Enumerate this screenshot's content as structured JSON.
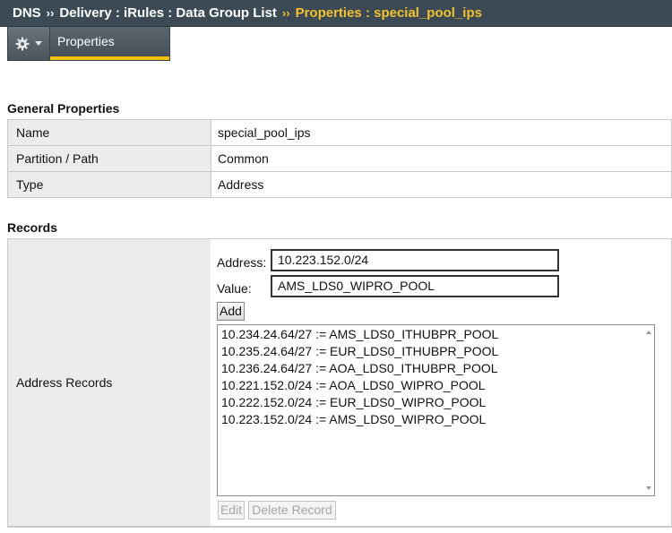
{
  "breadcrumb": {
    "root": "DNS",
    "separator": "››",
    "path": "Delivery : iRules : Data Group List",
    "current": "Properties : special_pool_ips"
  },
  "tabs": [
    {
      "icon": "gear-icon",
      "has_dropdown": true
    },
    {
      "label": "Properties",
      "active": true
    }
  ],
  "general": {
    "title": "General Properties",
    "rows": [
      {
        "key": "Name",
        "value": "special_pool_ips"
      },
      {
        "key": "Partition / Path",
        "value": "Common"
      },
      {
        "key": "Type",
        "value": "Address"
      }
    ]
  },
  "records": {
    "title": "Records",
    "row_label": "Address Records",
    "address_label": "Address:",
    "address_value": "10.223.152.0/24",
    "value_label": "Value:",
    "value_value": "AMS_LDS0_WIPRO_POOL",
    "add_label": "Add",
    "items": [
      "10.234.24.64/27 := AMS_LDS0_ITHUBPR_POOL",
      "10.235.24.64/27 := EUR_LDS0_ITHUBPR_POOL",
      "10.236.24.64/27 := AOA_LDS0_ITHUBPR_POOL",
      "10.221.152.0/24 := AOA_LDS0_WIPRO_POOL",
      "10.222.152.0/24 := EUR_LDS0_WIPRO_POOL",
      "10.223.152.0/24 := AMS_LDS0_WIPRO_POOL"
    ],
    "edit_label": "Edit",
    "delete_label": "Delete Record"
  },
  "colors": {
    "header_bg": "#3c4a55",
    "current_crumb": "#f2c12e",
    "tab_accent": "#f2c200",
    "label_cell_bg": "#ececec"
  }
}
